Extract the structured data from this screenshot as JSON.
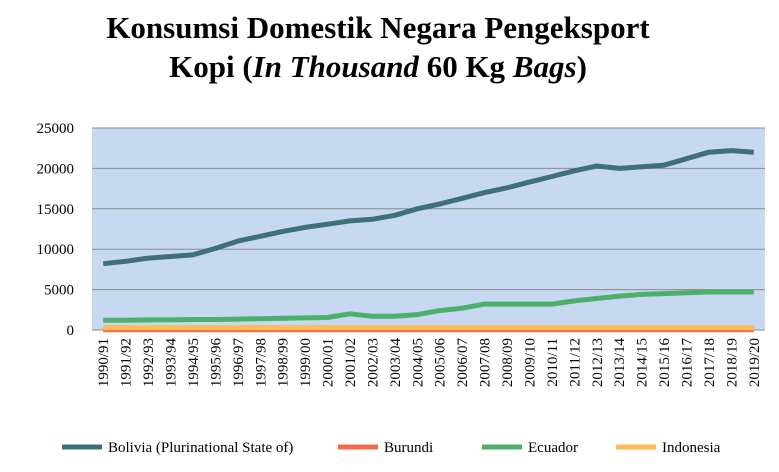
{
  "chart_data": {
    "type": "line",
    "title": [
      {
        "text": "Konsumsi Domestik Negara Pengeksport",
        "italic": false,
        "line": 0
      },
      {
        "text": "Kopi (",
        "italic": false,
        "line": 1
      },
      {
        "text": "In Thousand",
        "italic": true,
        "line": 1
      },
      {
        "text": " 60 Kg ",
        "italic": false,
        "line": 1
      },
      {
        "text": "Bags",
        "italic": true,
        "line": 1
      },
      {
        "text": ")",
        "italic": false,
        "line": 1
      }
    ],
    "categories": [
      "1990/91",
      "1991/92",
      "1992/93",
      "1993/94",
      "1994/95",
      "1995/96",
      "1996/97",
      "1997/98",
      "1998/99",
      "1999/00",
      "2000/01",
      "2001/02",
      "2002/03",
      "2003/04",
      "2004/05",
      "2005/06",
      "2006/07",
      "2007/08",
      "2008/09",
      "2009/10",
      "2010/11",
      "2011/12",
      "2012/13",
      "2013/14",
      "2014/15",
      "2015/16",
      "2016/17",
      "2017/18",
      "2018/19",
      "2019/20"
    ],
    "series": [
      {
        "name": "Bolivia (Plurinational State of)",
        "color": "#3e6f7b",
        "values": [
          8200,
          8500,
          8900,
          9100,
          9300,
          10100,
          11000,
          11600,
          12200,
          12700,
          13100,
          13500,
          13700,
          14200,
          15000,
          15600,
          16300,
          17000,
          17600,
          18300,
          19000,
          19700,
          20300,
          20000,
          20200,
          20400,
          21200,
          22000,
          22200,
          22000
        ]
      },
      {
        "name": "Burundi",
        "color": "#f26a4b",
        "values": [
          20,
          20,
          20,
          20,
          20,
          20,
          20,
          20,
          20,
          20,
          20,
          20,
          20,
          20,
          20,
          20,
          20,
          20,
          20,
          20,
          20,
          20,
          20,
          20,
          20,
          20,
          20,
          20,
          20,
          20
        ]
      },
      {
        "name": "Ecuador",
        "color": "#4daf6c",
        "values": [
          1200,
          1200,
          1250,
          1250,
          1300,
          1300,
          1350,
          1400,
          1450,
          1500,
          1550,
          2000,
          1700,
          1700,
          1900,
          2400,
          2700,
          3200,
          3200,
          3200,
          3200,
          3600,
          3900,
          4200,
          4400,
          4500,
          4600,
          4700,
          4700,
          4700
        ]
      },
      {
        "name": "Indonesia",
        "color": "#fbbd59",
        "values": [
          300,
          300,
          300,
          300,
          300,
          300,
          300,
          300,
          300,
          300,
          300,
          300,
          300,
          300,
          300,
          300,
          300,
          300,
          300,
          300,
          300,
          300,
          300,
          300,
          300,
          300,
          300,
          300,
          300,
          300
        ]
      }
    ],
    "ylim": [
      0,
      25000
    ],
    "yticks": [
      0,
      5000,
      10000,
      15000,
      20000,
      25000
    ],
    "grid": true,
    "plot_background": "#c6d9f0",
    "legend": "bottom"
  }
}
